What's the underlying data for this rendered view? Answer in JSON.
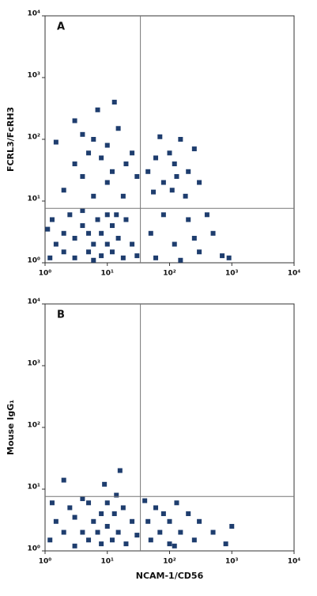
{
  "chart_data": [
    {
      "type": "scatter",
      "panel_label": "A",
      "ylabel": "FCRL3/FcRH3",
      "log_x": true,
      "log_y": true,
      "color": "#1e3d6e",
      "xlim": [
        1,
        10000
      ],
      "ylim": [
        1,
        10000
      ],
      "xticks": [
        {
          "value": 1,
          "label": "10⁰"
        },
        {
          "value": 10,
          "label": "10¹"
        },
        {
          "value": 100,
          "label": "10²"
        },
        {
          "value": 1000,
          "label": "10³"
        },
        {
          "value": 10000,
          "label": "10⁴"
        }
      ],
      "yticks": [
        {
          "value": 1,
          "label": "10⁰"
        },
        {
          "value": 10,
          "label": "10¹"
        },
        {
          "value": 100,
          "label": "10²"
        },
        {
          "value": 1000,
          "label": "10³"
        },
        {
          "value": 10000,
          "label": "10⁴"
        }
      ],
      "quadrant": {
        "x": 34,
        "y": 7.6
      },
      "x": [
        1.2,
        1.5,
        2,
        2,
        3,
        3,
        4,
        5,
        5,
        6,
        7,
        8,
        8,
        10,
        10,
        12,
        12,
        15,
        18,
        20,
        1.3,
        2.5,
        4,
        6,
        14,
        25,
        30,
        1.1,
        2,
        3,
        4,
        5,
        6,
        8,
        10,
        12,
        15,
        20,
        25,
        3,
        7,
        1.5,
        10,
        18,
        6,
        4,
        13,
        30,
        45,
        60,
        80,
        100,
        120,
        150,
        200,
        250,
        70,
        110,
        300,
        55,
        180,
        130,
        50,
        80,
        120,
        200,
        300,
        500,
        900,
        60,
        150,
        400,
        700,
        250
      ],
      "values": [
        1.2,
        2,
        1.5,
        3,
        1.2,
        2.5,
        4,
        1.5,
        3,
        2,
        5,
        1.3,
        3,
        2,
        6,
        1.5,
        4,
        2.5,
        1.2,
        5,
        5,
        6,
        7,
        1.1,
        6,
        2,
        1.3,
        3.5,
        15,
        40,
        25,
        60,
        100,
        50,
        80,
        30,
        150,
        40,
        60,
        200,
        300,
        90,
        20,
        12,
        12,
        120,
        400,
        25,
        30,
        50,
        20,
        60,
        40,
        100,
        30,
        70,
        110,
        15,
        20,
        14,
        12,
        25,
        3,
        6,
        2,
        5,
        1.5,
        3,
        1.2,
        1.2,
        1.1,
        6,
        1.3,
        2.5
      ]
    },
    {
      "type": "scatter",
      "panel_label": "B",
      "ylabel": "Mouse IgG₁",
      "xlabel": "NCAM-1/CD56",
      "log_x": true,
      "log_y": true,
      "color": "#1e3d6e",
      "xlim": [
        1,
        10000
      ],
      "ylim": [
        1,
        10000
      ],
      "xticks": [
        {
          "value": 1,
          "label": "10⁰"
        },
        {
          "value": 10,
          "label": "10¹"
        },
        {
          "value": 100,
          "label": "10²"
        },
        {
          "value": 1000,
          "label": "10³"
        },
        {
          "value": 10000,
          "label": "10⁴"
        }
      ],
      "yticks": [
        {
          "value": 1,
          "label": "10⁰"
        },
        {
          "value": 10,
          "label": "10¹"
        },
        {
          "value": 100,
          "label": "10²"
        },
        {
          "value": 1000,
          "label": "10³"
        },
        {
          "value": 10000,
          "label": "10⁴"
        }
      ],
      "quadrant": {
        "x": 34,
        "y": 7.6
      },
      "x": [
        1.2,
        1.5,
        2,
        2.5,
        3,
        3,
        4,
        5,
        5,
        6,
        7,
        8,
        8,
        10,
        10,
        12,
        13,
        15,
        18,
        20,
        25,
        1.3,
        4,
        14,
        9,
        16,
        2,
        30,
        45,
        50,
        60,
        70,
        80,
        100,
        100,
        130,
        150,
        200,
        250,
        300,
        500,
        800,
        1000,
        40,
        120
      ],
      "values": [
        1.5,
        3,
        2,
        5,
        1.2,
        3.5,
        2,
        6,
        1.5,
        3,
        2,
        4,
        1.3,
        2.5,
        6,
        1.5,
        4,
        2,
        5,
        1.3,
        3,
        6,
        7,
        8,
        12,
        20,
        14,
        1.8,
        3,
        1.5,
        5,
        2,
        4,
        1.3,
        3,
        6,
        2,
        4,
        1.5,
        3,
        2,
        1.3,
        2.5,
        6.5,
        1.2
      ]
    }
  ]
}
